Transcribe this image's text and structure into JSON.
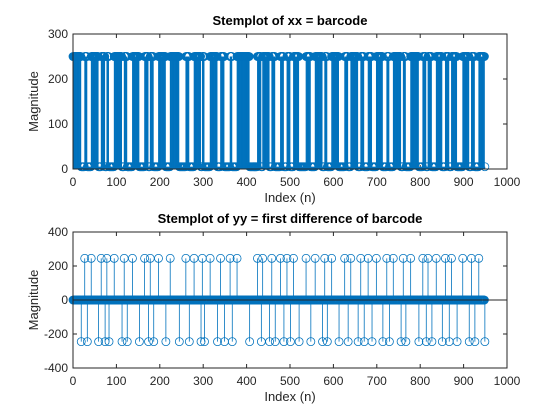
{
  "chart_data": [
    {
      "type": "stem",
      "title": "Stemplot of xx = barcode",
      "xlabel": "Index (n)",
      "ylabel": "Magnitude",
      "xlim": [
        0,
        1000
      ],
      "ylim": [
        0,
        300
      ],
      "xticks": [
        "0",
        "100",
        "200",
        "300",
        "400",
        "500",
        "600",
        "700",
        "800",
        "900",
        "1000"
      ],
      "yticks": [
        "0",
        "100",
        "200",
        "300"
      ],
      "series": [
        {
          "color": "#0072BD",
          "n": 950,
          "low_value": 5,
          "high_value": 250,
          "high_runs": [
            [
              0,
              18
            ],
            [
              27,
              32
            ],
            [
              42,
              58
            ],
            [
              65,
              73
            ],
            [
              78,
              82
            ],
            [
              95,
              112
            ],
            [
              118,
              124
            ],
            [
              137,
              152
            ],
            [
              165,
              173
            ],
            [
              178,
              185
            ],
            [
              197,
              213
            ],
            [
              224,
              244
            ],
            [
              260,
              267
            ],
            [
              279,
              294
            ],
            [
              298,
              302
            ],
            [
              316,
              332
            ],
            [
              340,
              348
            ],
            [
              362,
              366
            ],
            [
              378,
              406
            ],
            [
              425,
              433
            ],
            [
              437,
              452
            ],
            [
              458,
              465
            ],
            [
              478,
              485
            ],
            [
              493,
              500
            ],
            [
              508,
              520
            ],
            [
              537,
              547
            ],
            [
              558,
              574
            ],
            [
              580,
              585
            ],
            [
              596,
              612
            ],
            [
              626,
              633
            ],
            [
              640,
              656
            ],
            [
              663,
              670
            ],
            [
              680,
              688
            ],
            [
              699,
              713
            ],
            [
              723,
              728
            ],
            [
              738,
              755
            ],
            [
              761,
              766
            ],
            [
              778,
              796
            ],
            [
              806,
              813
            ],
            [
              818,
              826
            ],
            [
              837,
              850
            ],
            [
              858,
              866
            ],
            [
              872,
              884
            ],
            [
              898,
              912
            ],
            [
              918,
              925
            ],
            [
              935,
              948
            ]
          ]
        }
      ]
    },
    {
      "type": "stem",
      "title": "Stemplot of yy = first difference of barcode",
      "xlabel": "Index (n)",
      "ylabel": "Magnitude",
      "xlim": [
        0,
        1000
      ],
      "ylim": [
        -400,
        400
      ],
      "xticks": [
        "0",
        "100",
        "200",
        "300",
        "400",
        "500",
        "600",
        "700",
        "800",
        "900",
        "1000"
      ],
      "yticks": [
        "-400",
        "-200",
        "0",
        "200",
        "400"
      ],
      "series": [
        {
          "color": "#0072BD",
          "n": 950,
          "derived_from": "first difference of series above"
        }
      ]
    }
  ]
}
